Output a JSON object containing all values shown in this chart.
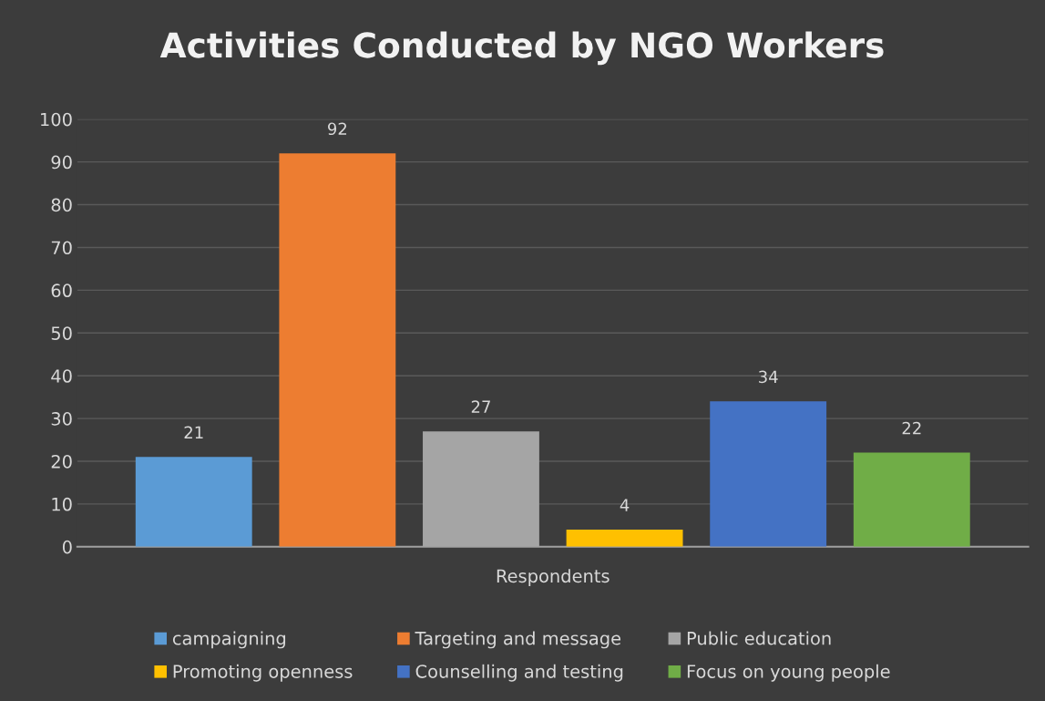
{
  "chart_data": {
    "type": "bar",
    "title": "Activities Conducted by NGO Workers",
    "xlabel": "Respondents",
    "categories": [
      null
    ],
    "series": [
      {
        "name": "campaigning",
        "color": "#5b9bd5",
        "values": [
          21
        ]
      },
      {
        "name": "Targeting and message",
        "color": "#ed7d31",
        "values": [
          92
        ]
      },
      {
        "name": "Public education",
        "color": "#a5a5a5",
        "values": [
          27
        ]
      },
      {
        "name": "Promoting openness",
        "color": "#ffc000",
        "values": [
          4
        ]
      },
      {
        "name": "Counselling and testing",
        "color": "#4472c4",
        "values": [
          34
        ]
      },
      {
        "name": "Focus on young people",
        "color": "#70ad47",
        "values": [
          22
        ]
      }
    ],
    "ylim": [
      0,
      100
    ],
    "yticks": [
      0,
      10,
      20,
      30,
      40,
      50,
      60,
      70,
      80,
      90,
      100
    ],
    "grid": "y",
    "legend": "bottom",
    "data_labels": true
  }
}
